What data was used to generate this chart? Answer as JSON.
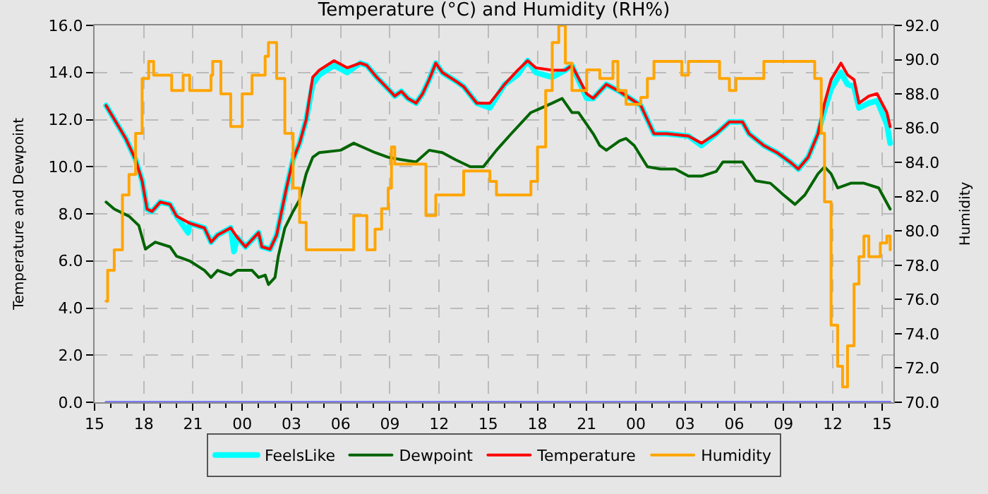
{
  "chart_data": {
    "type": "line",
    "title": "Temperature (°C) and Humidity (RH%)",
    "ylabel": "Temperature and Dewpoint",
    "y2label": "Humidity",
    "xlim": [
      15,
      63.7
    ],
    "xticks": [
      {
        "value": 15,
        "label": "15"
      },
      {
        "value": 18,
        "label": "18"
      },
      {
        "value": 21,
        "label": "21"
      },
      {
        "value": 24,
        "label": "00"
      },
      {
        "value": 27,
        "label": "03"
      },
      {
        "value": 30,
        "label": "06"
      },
      {
        "value": 33,
        "label": "09"
      },
      {
        "value": 36,
        "label": "12"
      },
      {
        "value": 39,
        "label": "15"
      },
      {
        "value": 42,
        "label": "18"
      },
      {
        "value": 45,
        "label": "21"
      },
      {
        "value": 48,
        "label": "00"
      },
      {
        "value": 51,
        "label": "03"
      },
      {
        "value": 54,
        "label": "06"
      },
      {
        "value": 57,
        "label": "09"
      },
      {
        "value": 60,
        "label": "12"
      },
      {
        "value": 63,
        "label": "15"
      }
    ],
    "ylim": [
      0,
      16
    ],
    "yticks": [
      {
        "value": 0,
        "label": "0.0"
      },
      {
        "value": 2,
        "label": "2.0"
      },
      {
        "value": 4,
        "label": "4.0"
      },
      {
        "value": 6,
        "label": "6.0"
      },
      {
        "value": 8,
        "label": "8.0"
      },
      {
        "value": 10,
        "label": "10.0"
      },
      {
        "value": 12,
        "label": "12.0"
      },
      {
        "value": 14,
        "label": "14.0"
      },
      {
        "value": 16,
        "label": "16.0"
      }
    ],
    "y2lim": [
      70,
      92
    ],
    "y2ticks": [
      {
        "value": 70,
        "label": "70.0"
      },
      {
        "value": 72,
        "label": "72.0"
      },
      {
        "value": 74,
        "label": "74.0"
      },
      {
        "value": 76,
        "label": "76.0"
      },
      {
        "value": 78,
        "label": "78.0"
      },
      {
        "value": 80,
        "label": "80.0"
      },
      {
        "value": 82,
        "label": "82.0"
      },
      {
        "value": 84,
        "label": "84.0"
      },
      {
        "value": 86,
        "label": "86.0"
      },
      {
        "value": 88,
        "label": "88.0"
      },
      {
        "value": 90,
        "label": "90.0"
      },
      {
        "value": 92,
        "label": "92.0"
      }
    ],
    "grid": true,
    "legend": "bottom",
    "marker": "none",
    "series": [
      {
        "name": "FeelsLike",
        "color": "#00ffff",
        "x": [
          15.7,
          16.3,
          16.9,
          17.5,
          17.9,
          18.2,
          18.5,
          19.0,
          19.6,
          20.0,
          20.7,
          20.8,
          21.7,
          22.1,
          22.5,
          23.3,
          23.5,
          23.7,
          24.2,
          24.6,
          25.0,
          25.2,
          25.7,
          26.1,
          26.7,
          27.1,
          27.5,
          27.9,
          28.3,
          28.7,
          29.6,
          30.4,
          31.2,
          31.6,
          32.2,
          32.9,
          33.3,
          33.7,
          34.1,
          34.6,
          35.0,
          35.4,
          35.8,
          36.2,
          37.1,
          37.5,
          38.3,
          39.1,
          40.0,
          40.8,
          41.4,
          41.9,
          42.9,
          43.7,
          44.1,
          45.0,
          45.4,
          46.2,
          47.0,
          48.3,
          48.7,
          49.1,
          49.9,
          51.2,
          52.0,
          52.9,
          53.7,
          54.5,
          54.9,
          55.8,
          56.6,
          57.4,
          57.9,
          58.5,
          59.1,
          59.5,
          59.9,
          60.5,
          60.9,
          61.3,
          61.6,
          62.2,
          62.7,
          63.3,
          63.5
        ],
        "values": [
          12.6,
          11.9,
          11.2,
          10.3,
          9.4,
          8.2,
          8.1,
          8.5,
          8.4,
          7.9,
          7.2,
          7.6,
          7.4,
          6.8,
          7.1,
          7.4,
          6.4,
          7.0,
          6.6,
          6.9,
          7.2,
          6.6,
          6.5,
          7.1,
          9.1,
          10.3,
          11.0,
          12.0,
          13.5,
          13.9,
          14.3,
          14.0,
          14.4,
          14.3,
          13.8,
          13.3,
          13.0,
          13.2,
          12.9,
          12.7,
          13.1,
          13.7,
          14.4,
          14.0,
          13.6,
          13.4,
          12.7,
          12.5,
          13.5,
          13.9,
          14.5,
          14.0,
          13.8,
          14.1,
          14.3,
          12.9,
          12.9,
          13.5,
          13.2,
          12.6,
          12.0,
          11.4,
          11.4,
          11.3,
          10.9,
          11.4,
          11.9,
          11.9,
          11.4,
          10.9,
          10.6,
          10.2,
          9.9,
          10.4,
          11.4,
          12.4,
          13.3,
          14.0,
          13.5,
          13.4,
          12.5,
          12.7,
          12.8,
          11.8,
          11.0
        ]
      },
      {
        "name": "Dewpoint",
        "color": "#006400",
        "x": [
          15.7,
          16.2,
          17.1,
          17.7,
          18.1,
          18.3,
          18.7,
          19.6,
          20.0,
          20.8,
          21.7,
          22.1,
          22.5,
          23.3,
          23.7,
          24.6,
          25.0,
          25.4,
          25.6,
          26.0,
          26.2,
          26.6,
          27.1,
          27.5,
          27.9,
          28.3,
          28.7,
          30.0,
          30.8,
          32.1,
          32.9,
          33.7,
          34.6,
          35.4,
          36.2,
          37.0,
          37.9,
          38.7,
          39.5,
          40.4,
          41.6,
          42.9,
          43.5,
          44.1,
          44.5,
          45.4,
          45.8,
          46.2,
          47.0,
          47.4,
          47.9,
          48.7,
          49.5,
          50.4,
          51.2,
          52.0,
          52.9,
          53.3,
          54.5,
          55.3,
          56.2,
          57.0,
          57.7,
          58.3,
          59.1,
          59.5,
          59.9,
          60.3,
          61.1,
          61.9,
          62.8,
          63.5
        ],
        "values": [
          8.5,
          8.2,
          7.9,
          7.5,
          6.5,
          6.6,
          6.8,
          6.6,
          6.2,
          6.0,
          5.6,
          5.3,
          5.6,
          5.4,
          5.6,
          5.6,
          5.3,
          5.4,
          5.0,
          5.3,
          6.2,
          7.4,
          8.1,
          8.6,
          9.7,
          10.4,
          10.6,
          10.7,
          11.0,
          10.6,
          10.4,
          10.3,
          10.2,
          10.7,
          10.6,
          10.3,
          10.0,
          10.0,
          10.7,
          11.4,
          12.3,
          12.7,
          12.9,
          12.3,
          12.3,
          11.4,
          10.9,
          10.7,
          11.1,
          11.2,
          10.9,
          10.0,
          9.9,
          9.9,
          9.6,
          9.6,
          9.8,
          10.2,
          10.2,
          9.4,
          9.3,
          8.8,
          8.4,
          8.8,
          9.7,
          10.0,
          9.7,
          9.1,
          9.3,
          9.3,
          9.1,
          8.2
        ]
      },
      {
        "name": "Temperature",
        "color": "#ff0000",
        "x": [
          15.7,
          16.3,
          16.9,
          17.5,
          17.9,
          18.2,
          18.5,
          19.0,
          19.6,
          20.0,
          20.8,
          21.7,
          22.1,
          22.5,
          23.3,
          23.7,
          24.2,
          24.6,
          25.0,
          25.2,
          25.7,
          26.1,
          26.7,
          27.1,
          27.5,
          27.9,
          28.3,
          28.7,
          29.6,
          30.4,
          31.2,
          31.6,
          32.2,
          32.9,
          33.3,
          33.7,
          34.1,
          34.6,
          35.0,
          35.4,
          35.8,
          36.2,
          37.1,
          37.5,
          38.3,
          39.1,
          40.0,
          40.8,
          41.4,
          41.9,
          42.9,
          43.7,
          44.1,
          45.0,
          45.4,
          46.2,
          47.0,
          48.3,
          48.7,
          49.1,
          49.9,
          51.2,
          52.0,
          52.9,
          53.7,
          54.5,
          54.9,
          55.8,
          56.6,
          57.4,
          57.9,
          58.5,
          59.1,
          59.5,
          59.9,
          60.5,
          60.9,
          61.3,
          61.6,
          62.2,
          62.7,
          63.3,
          63.5
        ],
        "values": [
          12.6,
          11.9,
          11.2,
          10.3,
          9.4,
          8.2,
          8.1,
          8.5,
          8.4,
          7.9,
          7.6,
          7.4,
          6.8,
          7.1,
          7.4,
          7.0,
          6.6,
          6.9,
          7.2,
          6.6,
          6.5,
          7.1,
          9.1,
          10.3,
          11.0,
          12.0,
          13.8,
          14.1,
          14.5,
          14.2,
          14.4,
          14.3,
          13.8,
          13.3,
          13.0,
          13.2,
          12.9,
          12.7,
          13.1,
          13.7,
          14.4,
          14.0,
          13.6,
          13.4,
          12.7,
          12.7,
          13.5,
          14.1,
          14.5,
          14.2,
          14.1,
          14.1,
          14.3,
          13.1,
          12.9,
          13.5,
          13.2,
          12.6,
          12.0,
          11.4,
          11.4,
          11.3,
          11.0,
          11.4,
          11.9,
          11.9,
          11.4,
          10.9,
          10.6,
          10.2,
          9.9,
          10.4,
          11.4,
          12.7,
          13.7,
          14.4,
          13.9,
          13.7,
          12.7,
          13.0,
          13.1,
          12.3,
          11.7
        ]
      },
      {
        "name": "Humidity",
        "color": "#ffa500",
        "type": "step",
        "axis": "y2",
        "x": [
          15.7,
          15.8,
          16.2,
          16.7,
          17.1,
          17.5,
          17.9,
          18.3,
          18.6,
          19.6,
          19.7,
          20.4,
          20.8,
          22.1,
          22.2,
          22.7,
          23.3,
          23.7,
          24.0,
          24.6,
          25.4,
          25.6,
          26.1,
          26.6,
          27.1,
          27.5,
          27.9,
          30.0,
          30.8,
          31.2,
          31.6,
          32.1,
          32.5,
          32.9,
          33.1,
          33.3,
          34.6,
          35.2,
          35.8,
          37.0,
          37.5,
          38.7,
          39.1,
          39.5,
          41.2,
          41.6,
          42.0,
          42.5,
          42.9,
          43.3,
          43.7,
          44.1,
          45.0,
          45.8,
          46.6,
          46.9,
          47.4,
          48.3,
          48.7,
          49.1,
          50.4,
          50.8,
          51.2,
          52.9,
          53.1,
          53.7,
          54.1,
          55.3,
          55.8,
          58.7,
          58.9,
          59.3,
          59.5,
          59.9,
          60.3,
          60.6,
          60.9,
          61.3,
          61.6,
          61.9,
          62.2,
          62.9,
          63.3,
          63.5
        ],
        "values": [
          75.9,
          77.7,
          78.9,
          82.1,
          83.3,
          85.7,
          88.9,
          89.9,
          89.1,
          89.1,
          88.2,
          89.1,
          88.2,
          89.1,
          89.9,
          88.0,
          86.1,
          86.1,
          88.0,
          89.1,
          90.2,
          91.0,
          88.9,
          85.7,
          82.5,
          80.5,
          78.9,
          78.9,
          80.9,
          80.9,
          78.9,
          80.1,
          81.3,
          82.5,
          84.9,
          83.9,
          83.9,
          80.9,
          82.1,
          82.1,
          83.5,
          83.5,
          82.9,
          82.1,
          82.1,
          82.9,
          84.9,
          88.2,
          91.0,
          92.0,
          89.8,
          88.2,
          89.4,
          88.9,
          89.9,
          88.2,
          87.4,
          87.8,
          88.9,
          89.9,
          89.9,
          89.1,
          89.9,
          89.9,
          88.9,
          88.2,
          88.9,
          88.9,
          89.9,
          89.9,
          88.9,
          85.7,
          81.7,
          74.5,
          72.1,
          70.9,
          73.3,
          76.9,
          78.5,
          79.7,
          78.5,
          79.3,
          79.7,
          78.9
        ]
      },
      {
        "color": "#7b7bff",
        "x": [
          15.7,
          63.5
        ],
        "values": [
          0,
          0
        ]
      }
    ]
  }
}
